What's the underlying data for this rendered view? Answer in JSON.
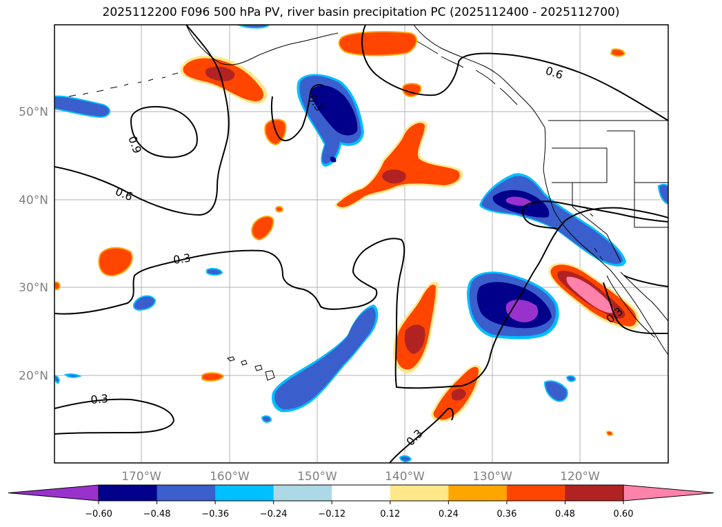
{
  "title": "2025112200 F096 500 hPa PV, river basin precipitation PC (2025112400 - 2025112700)",
  "map": {
    "lat_labels": [
      "50°N",
      "40°N",
      "30°N",
      "20°N"
    ],
    "lon_labels": [
      "170°W",
      "160°W",
      "150°W",
      "140°W",
      "130°W",
      "120°W"
    ],
    "contour_labels": [
      "0.6",
      "0.3",
      "0.9",
      "0.6",
      "0.3",
      "0.3",
      "0.3",
      "0.3"
    ]
  },
  "colorbar": {
    "ticks": [
      "−0.60",
      "−0.48",
      "−0.36",
      "−0.24",
      "−0.12",
      "0.12",
      "0.24",
      "0.36",
      "0.48",
      "0.60"
    ],
    "colors": [
      "#9932cc",
      "#00008b",
      "#3a5fcd",
      "#00bfff",
      "#add8e6",
      "#ffffff",
      "#ffe78a",
      "#ffa500",
      "#ff4500",
      "#b22222",
      "#ff82ab"
    ]
  },
  "colors": {
    "grid": "#b0b0b0",
    "contour": "#000000"
  }
}
